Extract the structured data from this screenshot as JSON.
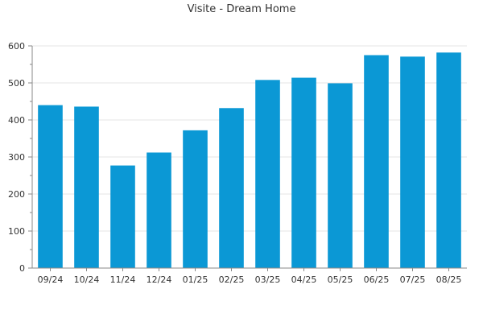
{
  "chart_data": {
    "type": "bar",
    "title": "Visite - Dream Home",
    "xlabel": "",
    "ylabel": "",
    "categories": [
      "09/24",
      "10/24",
      "11/24",
      "12/24",
      "01/25",
      "02/25",
      "03/25",
      "04/25",
      "05/25",
      "06/25",
      "07/25",
      "08/25"
    ],
    "values": [
      440,
      436,
      277,
      312,
      372,
      432,
      508,
      514,
      499,
      575,
      571,
      582
    ],
    "ylim": [
      0,
      600
    ],
    "yticks": [
      0,
      100,
      200,
      300,
      400,
      500,
      600
    ],
    "grid": true,
    "legend": "none",
    "bar_color": "#0b98d5"
  }
}
